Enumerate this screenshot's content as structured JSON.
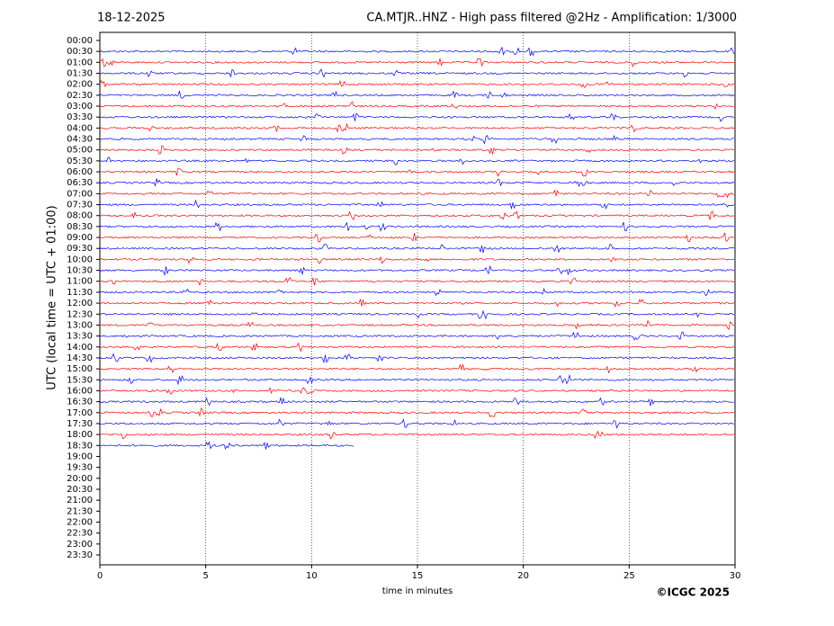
{
  "chart_data": {
    "type": "helicorder",
    "date": "18-12-2025",
    "title": "CA.MTJR..HNZ - High pass filtered @2Hz - Amplification: 1/3000",
    "xlabel": "time in minutes",
    "ylabel": "UTC (local time = UTC + 01:00)",
    "credit": "©ICGC 2025",
    "categories": [
      "00:00",
      "00:30",
      "01:00",
      "01:30",
      "02:00",
      "02:30",
      "03:00",
      "03:30",
      "04:00",
      "04:30",
      "05:00",
      "05:30",
      "06:00",
      "06:30",
      "07:00",
      "07:30",
      "08:00",
      "08:30",
      "09:00",
      "09:30",
      "10:00",
      "10:30",
      "11:00",
      "11:30",
      "12:00",
      "12:30",
      "13:00",
      "13:30",
      "14:00",
      "14:30",
      "15:00",
      "15:30",
      "16:00",
      "16:30",
      "17:00",
      "17:30",
      "18:00",
      "18:30",
      "19:00",
      "19:30",
      "20:00",
      "20:30",
      "21:00",
      "21:30",
      "22:00",
      "22:30",
      "23:00",
      "23:30"
    ],
    "values": [
      null,
      30,
      30,
      30,
      30,
      30,
      30,
      30,
      30,
      30,
      30,
      30,
      30,
      30,
      30,
      30,
      30,
      30,
      30,
      30,
      30,
      30,
      30,
      30,
      30,
      30,
      30,
      30,
      30,
      30,
      30,
      30,
      30,
      30,
      30,
      30,
      30,
      12,
      null,
      null,
      null,
      null,
      null,
      null,
      null,
      null,
      null,
      null
    ],
    "trace_colors": [
      "#ff0000",
      "#0000ff"
    ],
    "xlim": [
      0,
      30
    ],
    "xticks": [
      0,
      5,
      10,
      15,
      20,
      25,
      30
    ],
    "grid": true
  }
}
